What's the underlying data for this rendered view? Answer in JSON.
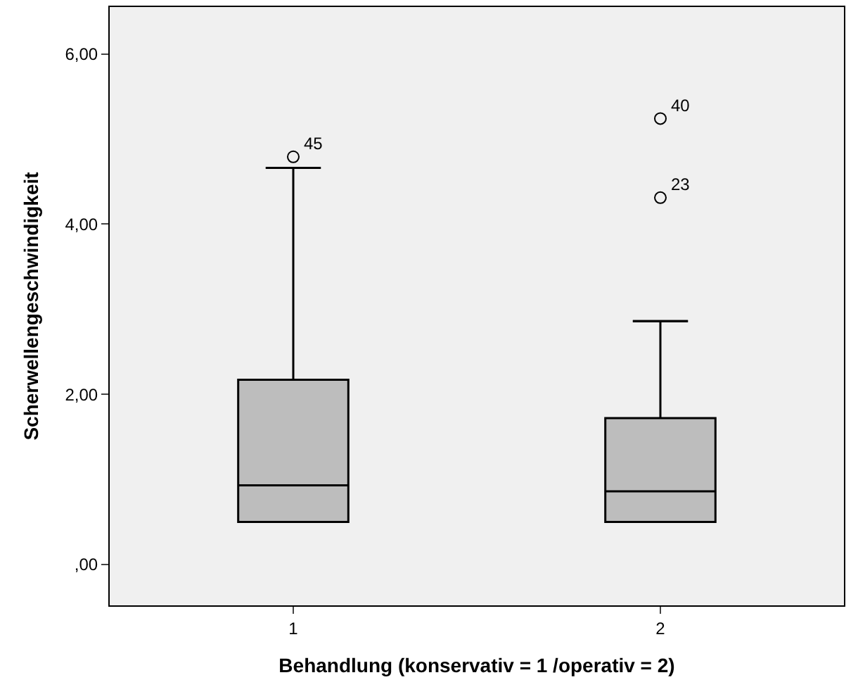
{
  "chart_data": {
    "type": "box",
    "xlabel": "Behandlung (konservativ = 1 /operativ = 2)",
    "ylabel": "Scherwellengeschwindigkeit",
    "categories": [
      "1",
      "2"
    ],
    "boxes": [
      {
        "low": 0.5,
        "q1": 0.5,
        "median": 0.93,
        "q3": 2.17,
        "high": 4.66,
        "outliers": [
          4.79
        ]
      },
      {
        "low": 0.5,
        "q1": 0.5,
        "median": 0.86,
        "q3": 1.72,
        "high": 2.86,
        "outliers": [
          5.24,
          4.31
        ]
      }
    ],
    "color": "#bdbdbd",
    "ylim": [
      -0.48,
      6.55
    ],
    "yticks": [
      {
        "value": 0,
        "label": ",00"
      },
      {
        "value": 2,
        "label": "2,00"
      },
      {
        "value": 4,
        "label": "4,00"
      },
      {
        "value": 6,
        "label": "6,00"
      }
    ],
    "annotations": [
      "45",
      "40",
      "23"
    ],
    "grid": false
  }
}
